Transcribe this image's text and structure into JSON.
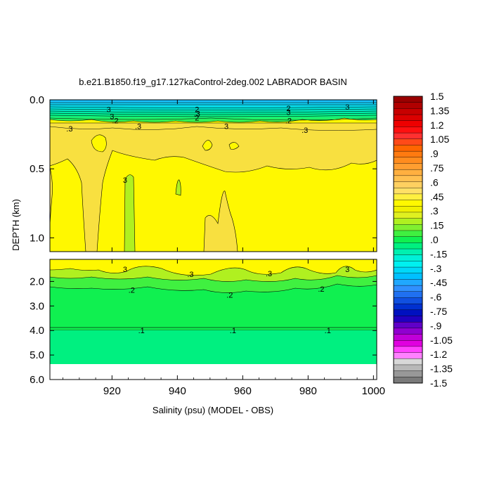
{
  "chart_data": {
    "type": "heatmap",
    "title": "b.e21.B1850.f19_g17.127kaControl-2deg.002 LABRADOR BASIN",
    "xlabel": "Salinity (psu) (MODEL - OBS)",
    "ylabel": "DEPTH (km)",
    "xlim": [
      901,
      1001
    ],
    "x_ticks": [
      "920",
      "940",
      "960",
      "980",
      "1000"
    ],
    "x_tick_values": [
      920,
      940,
      960,
      980,
      1000
    ],
    "upper_panel": {
      "ylim": [
        0.0,
        1.1
      ],
      "y_ticks": [
        "0.0",
        "0.5",
        "1.0"
      ],
      "y_tick_values": [
        0.0,
        0.5,
        1.0
      ]
    },
    "lower_panel": {
      "ylim": [
        1.1,
        6.0
      ],
      "y_ticks": [
        "2.0",
        "3.0",
        "4.0",
        "5.0",
        "6.0"
      ],
      "y_tick_values": [
        2.0,
        3.0,
        4.0,
        5.0,
        6.0
      ],
      "no_data_below": 5.35
    },
    "contour_labels": [
      {
        "text": "3",
        "x": 919,
        "depth": 0.07
      },
      {
        "text": "3",
        "x": 920,
        "depth": 0.12
      },
      {
        "text": ".2",
        "x": 921,
        "depth": 0.15
      },
      {
        "text": "2",
        "x": 946,
        "depth": 0.07
      },
      {
        "text": ".3",
        "x": 946,
        "depth": 0.1
      },
      {
        "text": "2",
        "x": 946,
        "depth": 0.13
      },
      {
        "text": "2",
        "x": 974,
        "depth": 0.06
      },
      {
        "text": "3",
        "x": 974,
        "depth": 0.09
      },
      {
        "text": ".2",
        "x": 974,
        "depth": 0.15
      },
      {
        "text": "3",
        "x": 992,
        "depth": 0.05
      },
      {
        "text": ".3",
        "x": 907,
        "depth": 0.21
      },
      {
        "text": ".3",
        "x": 928,
        "depth": 0.19
      },
      {
        "text": "3",
        "x": 955,
        "depth": 0.19
      },
      {
        "text": ".3",
        "x": 979,
        "depth": 0.22
      },
      {
        "text": "3",
        "x": 924,
        "depth": 0.58
      },
      {
        "text": "3",
        "x": 924,
        "depth": 1.5
      },
      {
        "text": ".3",
        "x": 944,
        "depth": 1.7
      },
      {
        "text": ".3",
        "x": 968,
        "depth": 1.67
      },
      {
        "text": "3",
        "x": 992,
        "depth": 1.5
      },
      {
        "text": ".2",
        "x": 926,
        "depth": 2.35
      },
      {
        "text": ".2",
        "x": 956,
        "depth": 2.55
      },
      {
        "text": ".2",
        "x": 984,
        "depth": 2.3
      },
      {
        "text": ".1",
        "x": 929,
        "depth": 4.0
      },
      {
        "text": ".1",
        "x": 957,
        "depth": 4.0
      },
      {
        "text": ".1",
        "x": 986,
        "depth": 4.0
      }
    ],
    "colorbar": {
      "labels": [
        "1.5",
        "1.35",
        "1.2",
        "1.05",
        ".9",
        ".75",
        ".6",
        ".45",
        ".3",
        ".15",
        ".0",
        "-.15",
        "-.3",
        "-.45",
        "-.6",
        "-.75",
        "-.9",
        "-1.05",
        "-1.2",
        "-1.35",
        "-1.5"
      ],
      "colors": [
        "#9a0000",
        "#b00000",
        "#c80000",
        "#dc0000",
        "#ee0000",
        "#ff1010",
        "#ff3030",
        "#ff4a18",
        "#ff6600",
        "#ff7a10",
        "#ff8c1e",
        "#ff9e30",
        "#ffb040",
        "#ffc050",
        "#ffd060",
        "#ffe066",
        "#fff040",
        "#fff800",
        "#f0f000",
        "#e0f020",
        "#b0f020",
        "#80f030",
        "#40f040",
        "#10f050",
        "#00f080",
        "#00f0b0",
        "#00f0d8",
        "#00f0f0",
        "#00d8f8",
        "#00c0ff",
        "#20a8ff",
        "#3090ff",
        "#2070f0",
        "#1050e0",
        "#0030d0",
        "#0010c0",
        "#2000c0",
        "#6000c8",
        "#9000d0",
        "#c000d8",
        "#e000e0",
        "#ff40ff",
        "#ff80ff",
        "#d8d8d8",
        "#b8b8b8",
        "#989898",
        "#7a7a7a"
      ]
    }
  }
}
